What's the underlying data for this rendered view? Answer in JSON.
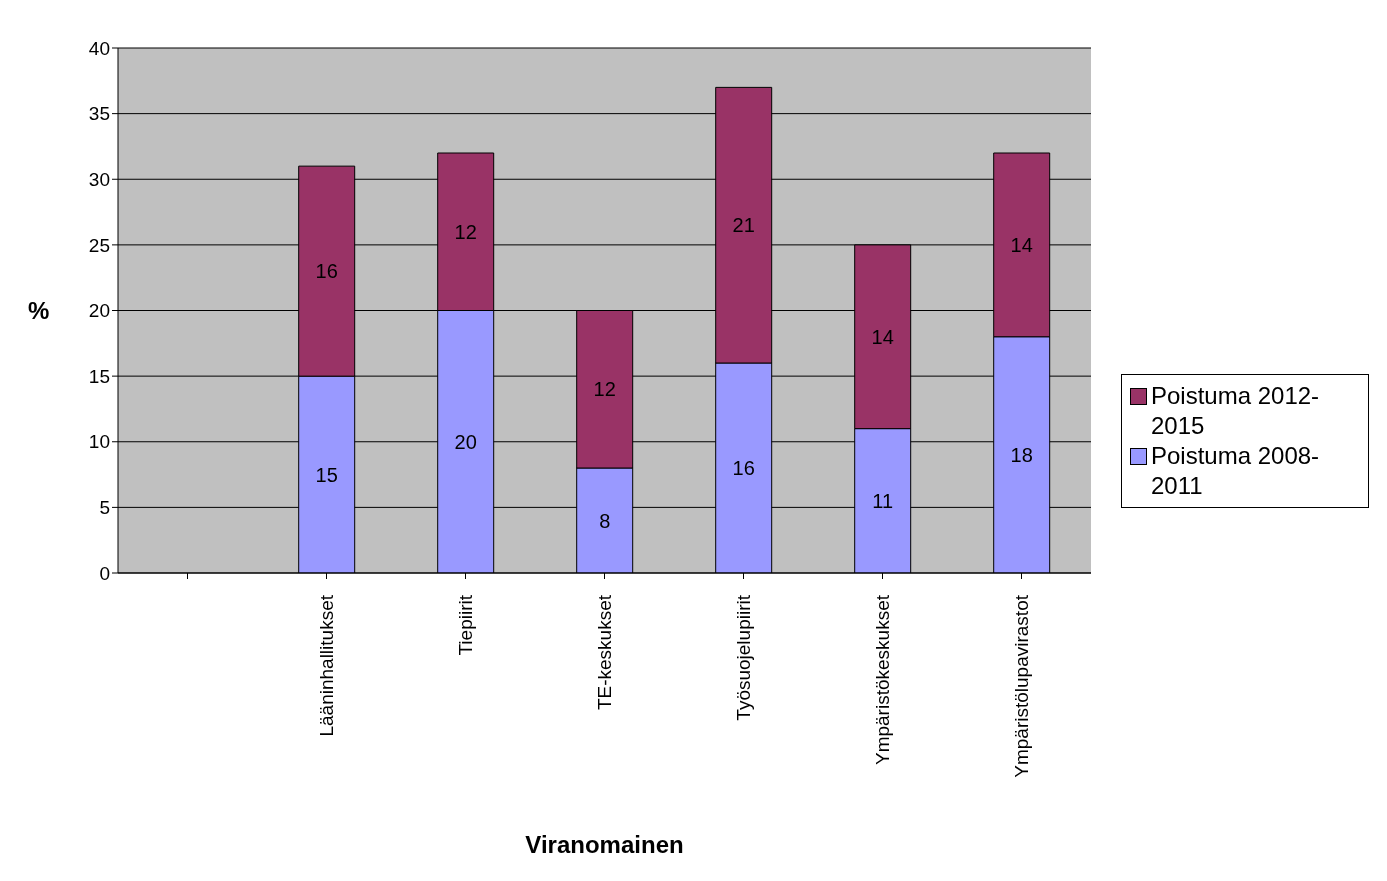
{
  "chart_data": {
    "type": "bar",
    "stacked": true,
    "xlabel": "Viranomainen",
    "ylabel": "%",
    "categories": [
      null,
      "Lääninhallitukset",
      "Tiepiirit",
      "TE-keskukset",
      "Työsuojelupiirit",
      "Ympäristökeskukset",
      "Ympäristölupavirastot"
    ],
    "series": [
      {
        "name": "Poistuma 2008-2011",
        "color": "#9999ff",
        "values": [
          null,
          15,
          20,
          8,
          16,
          11,
          18
        ]
      },
      {
        "name": "Poistuma 2012-2015",
        "color": "#993366",
        "values": [
          null,
          16,
          12,
          12,
          21,
          14,
          14
        ]
      }
    ],
    "ylim": [
      0,
      40
    ],
    "yticks": [
      0,
      5,
      10,
      15,
      20,
      25,
      30,
      35,
      40
    ],
    "grid": "y",
    "legend": "right",
    "data_labels": true
  }
}
